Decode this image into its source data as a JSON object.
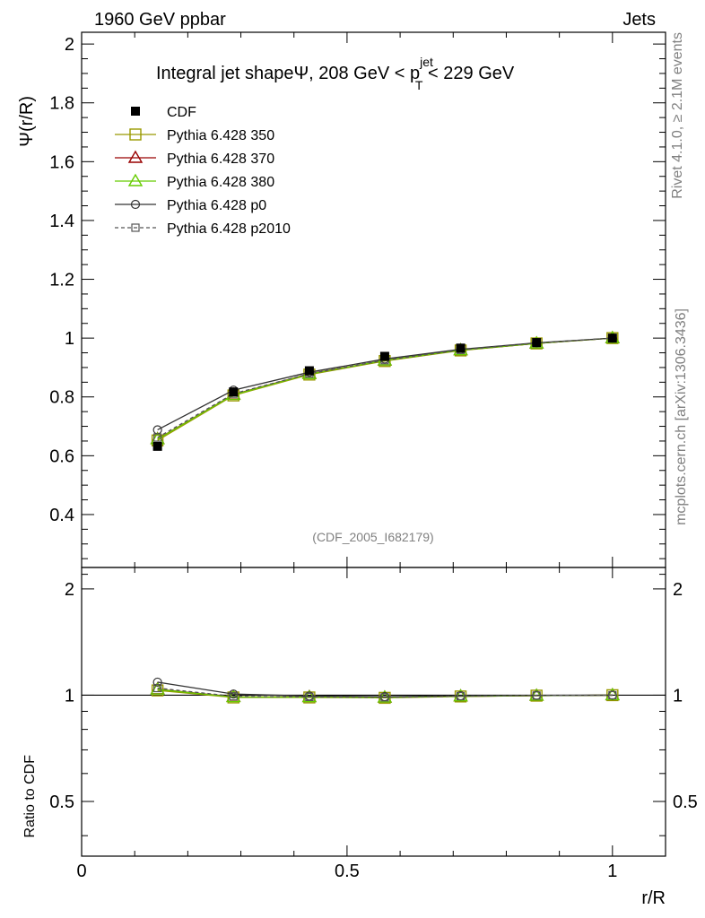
{
  "header": {
    "left": "1960 GeV ppbar",
    "right": "Jets"
  },
  "side": {
    "rivet": "Rivet 4.1.0, ≥ 2.1M events",
    "mcplots": "mcplots.cern.ch [arXiv:1306.3436]"
  },
  "chart_data": {
    "type": "line",
    "title_main": "Integral jet shapeΨ, 208 GeV < p",
    "title_sup": "jet",
    "title_sub": "T",
    "title_end": " < 229 GeV",
    "analysis_tag": "(CDF_2005_I682179)",
    "ylabel_top": "Ψ(r/R)",
    "ylabel_ratio": "Ratio to CDF",
    "xlabel": "r/R",
    "xlim": [
      0,
      1.1
    ],
    "ylim_top": [
      0.22,
      2.04
    ],
    "ylim_ratio": [
      0.35,
      2.3
    ],
    "x_ticks": [
      {
        "v": 0,
        "label": "0"
      },
      {
        "v": 0.5,
        "label": "0.5"
      },
      {
        "v": 1,
        "label": "1"
      }
    ],
    "y_ticks_top": [
      {
        "v": 0.4,
        "label": "0.4"
      },
      {
        "v": 0.6,
        "label": "0.6"
      },
      {
        "v": 0.8,
        "label": "0.8"
      },
      {
        "v": 1.0,
        "label": "1"
      },
      {
        "v": 1.2,
        "label": "1.2"
      },
      {
        "v": 1.4,
        "label": "1.4"
      },
      {
        "v": 1.6,
        "label": "1.6"
      },
      {
        "v": 1.8,
        "label": "1.8"
      },
      {
        "v": 2.0,
        "label": "2"
      }
    ],
    "y_ticks_ratio": [
      {
        "v": 0.5,
        "label": "0.5"
      },
      {
        "v": 1.0,
        "label": "1"
      },
      {
        "v": 2.0,
        "label": "2"
      }
    ],
    "x": [
      0.143,
      0.286,
      0.429,
      0.571,
      0.714,
      0.857,
      1.0
    ],
    "series": [
      {
        "name": "CDF",
        "marker": "filled-square",
        "color": "#000000",
        "dash": "",
        "isData": true,
        "values": [
          0.632,
          0.817,
          0.889,
          0.938,
          0.966,
          0.985,
          1.0
        ]
      },
      {
        "name": "Pythia 6.428 350",
        "marker": "open-square",
        "color": "#999900",
        "dash": "",
        "values": [
          0.652,
          0.805,
          0.876,
          0.922,
          0.958,
          0.982,
          1.0
        ]
      },
      {
        "name": "Pythia 6.428 370",
        "marker": "open-triangle",
        "color": "#990000",
        "dash": "",
        "values": [
          0.657,
          0.808,
          0.879,
          0.924,
          0.959,
          0.982,
          1.0
        ]
      },
      {
        "name": "Pythia 6.428 380",
        "marker": "open-triangle",
        "color": "#66cc00",
        "dash": "",
        "values": [
          0.656,
          0.807,
          0.878,
          0.924,
          0.959,
          0.982,
          1.0
        ]
      },
      {
        "name": "Pythia 6.428 p0",
        "marker": "open-circle",
        "color": "#333333",
        "dash": "",
        "values": [
          0.688,
          0.823,
          0.884,
          0.929,
          0.962,
          0.984,
          1.0
        ]
      },
      {
        "name": "Pythia 6.428 p2010",
        "marker": "open-square-small",
        "color": "#555555",
        "dash": "4,3",
        "values": [
          0.662,
          0.811,
          0.879,
          0.925,
          0.96,
          0.983,
          1.0
        ]
      }
    ]
  }
}
